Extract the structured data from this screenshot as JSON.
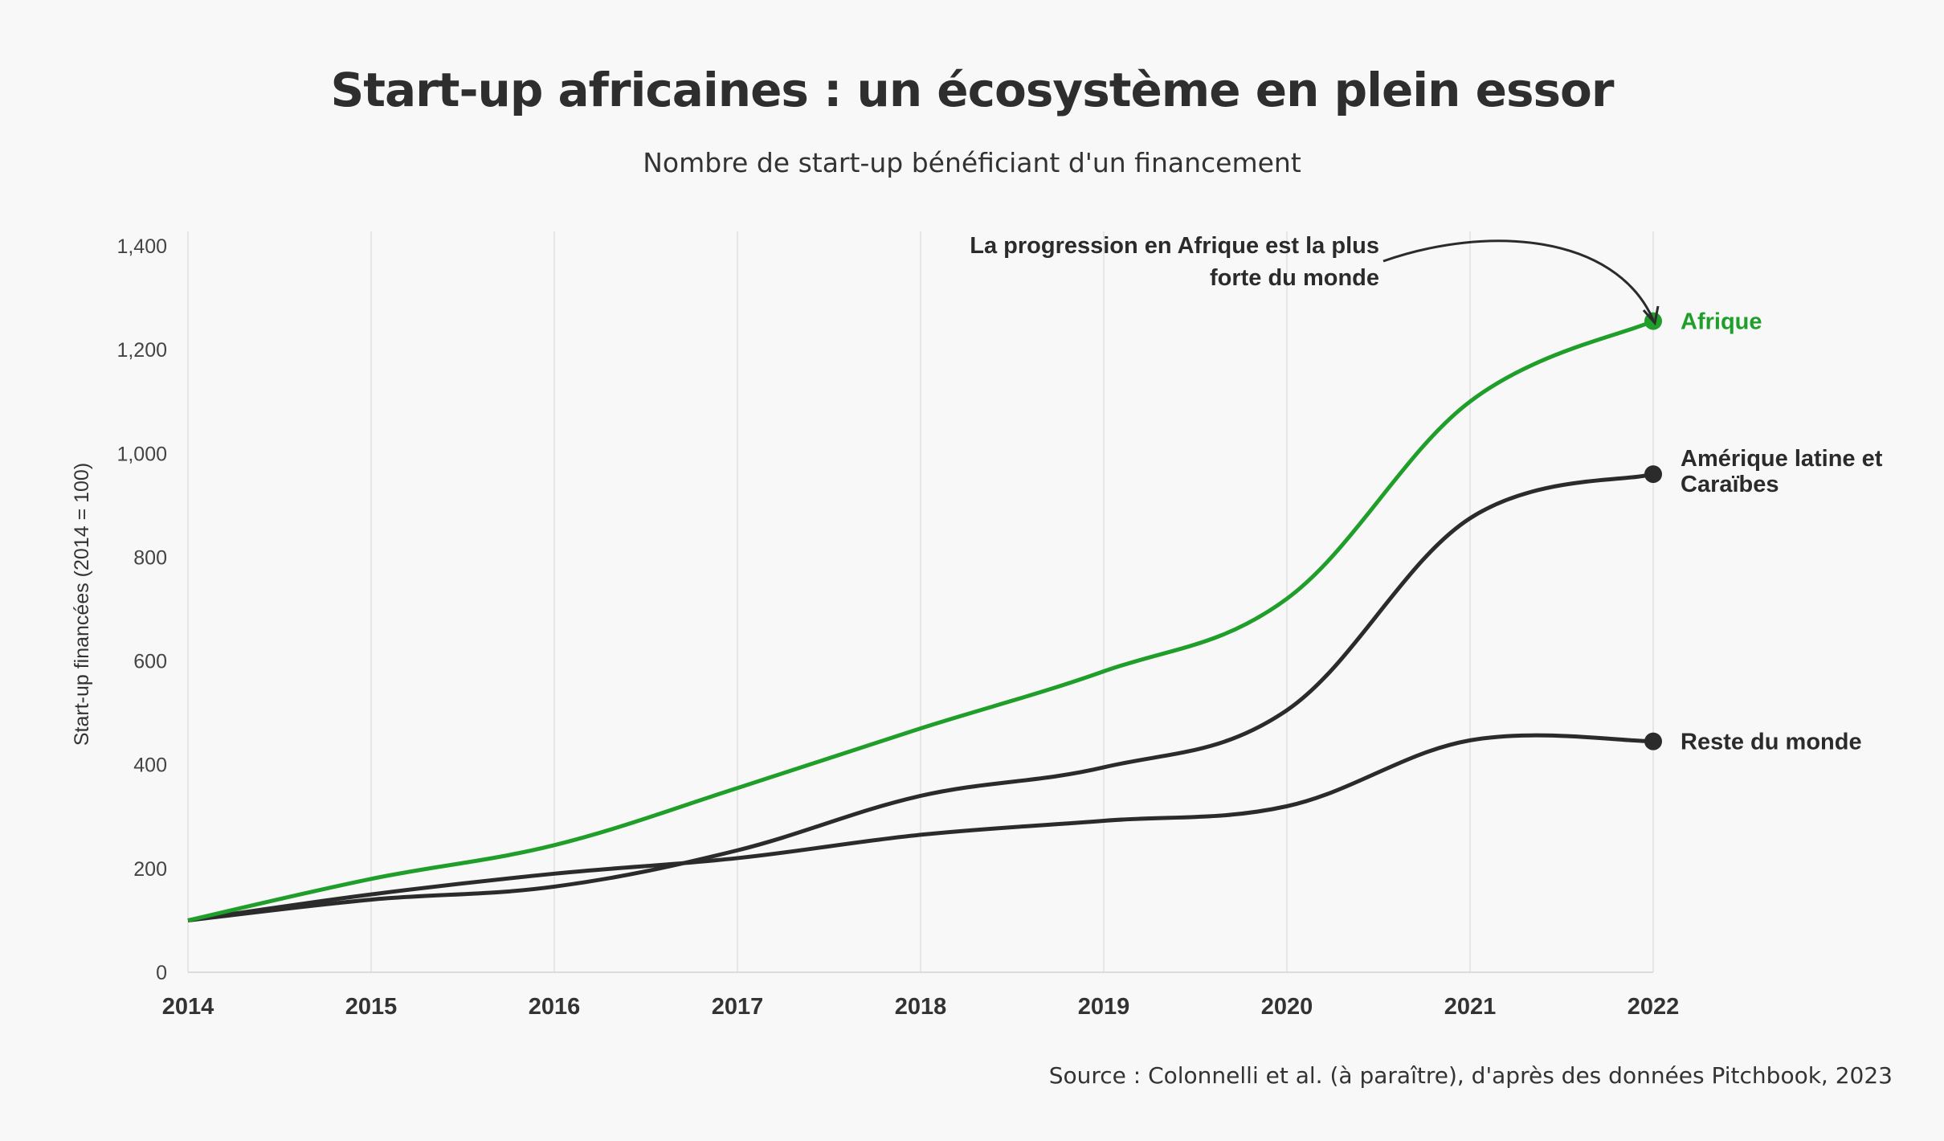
{
  "chart_data": {
    "type": "line",
    "title": "Start-up africaines : un écosystème en plein essor",
    "subtitle": "Nombre de start-up bénéficiant d'un financement",
    "ylabel": "Start-up financées (2014 = 100)",
    "xlabel": "",
    "x": [
      2014,
      2015,
      2016,
      2017,
      2018,
      2019,
      2020,
      2021,
      2022
    ],
    "ylim": [
      0,
      1400
    ],
    "yticks": [
      "0",
      "200",
      "400",
      "600",
      "800",
      "1,000",
      "1,200",
      "1,400"
    ],
    "grid": "vertical",
    "series": [
      {
        "name": "Afrique",
        "color": "#1f9e2a",
        "values": [
          100,
          180,
          245,
          355,
          470,
          580,
          720,
          1100,
          1255
        ]
      },
      {
        "name": "Amérique latine et Caraïbes",
        "color": "#2b2b2b",
        "values": [
          100,
          140,
          165,
          235,
          340,
          395,
          505,
          875,
          960
        ]
      },
      {
        "name": "Reste du monde",
        "color": "#2b2b2b",
        "values": [
          100,
          150,
          190,
          220,
          265,
          292,
          320,
          447,
          445
        ]
      }
    ],
    "annotation": {
      "text_line1": "La progression en Afrique est la plus",
      "text_line2": "forte du monde"
    },
    "source": "Source : Colonnelli et al. (à paraître), d'après des données Pitchbook, 2023"
  }
}
